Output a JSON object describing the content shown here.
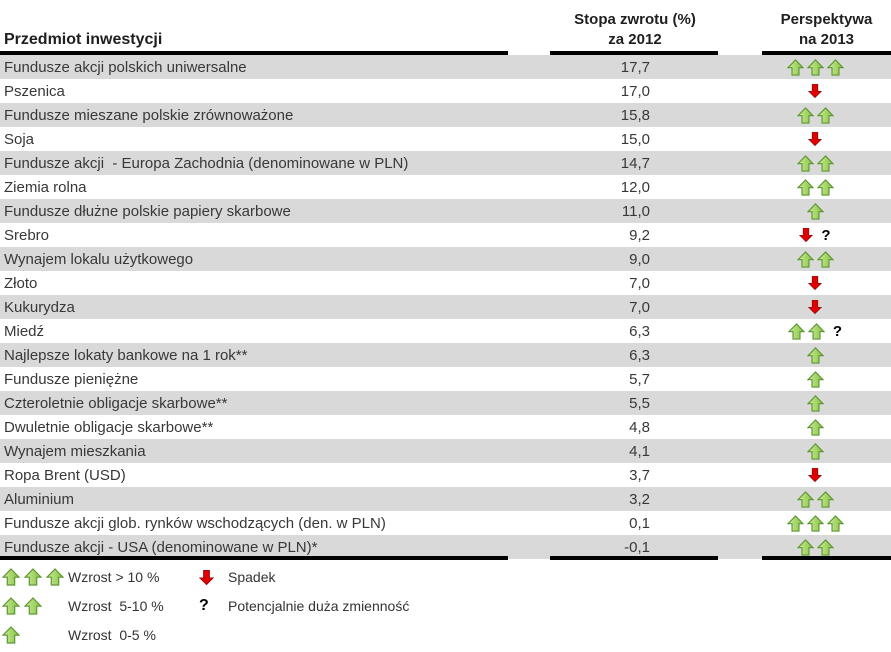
{
  "header": {
    "col1": "Przedmiot inwestycji",
    "col2_line1": "Stopa zwrotu (%)",
    "col2_line2": "za 2012",
    "col3_line1": "Perspektywa",
    "col3_line2": "na 2013"
  },
  "rows": [
    {
      "name": "Fundusze akcji polskich uniwersalne",
      "value": "17,7",
      "up": 3,
      "down": 0,
      "question": false
    },
    {
      "name": "Pszenica",
      "value": "17,0",
      "up": 0,
      "down": 1,
      "question": false
    },
    {
      "name": "Fundusze mieszane polskie zrównoważone",
      "value": "15,8",
      "up": 2,
      "down": 0,
      "question": false
    },
    {
      "name": "Soja",
      "value": "15,0",
      "up": 0,
      "down": 1,
      "question": false
    },
    {
      "name": "Fundusze akcji  - Europa Zachodnia (denominowane w PLN)",
      "value": "14,7",
      "up": 2,
      "down": 0,
      "question": false
    },
    {
      "name": "Ziemia rolna",
      "value": "12,0",
      "up": 2,
      "down": 0,
      "question": false
    },
    {
      "name": "Fundusze dłużne polskie papiery skarbowe",
      "value": "11,0",
      "up": 1,
      "down": 0,
      "question": false
    },
    {
      "name": "Srebro",
      "value": "9,2",
      "up": 0,
      "down": 1,
      "question": true
    },
    {
      "name": "Wynajem lokalu użytkowego",
      "value": "9,0",
      "up": 2,
      "down": 0,
      "question": false
    },
    {
      "name": "Złoto",
      "value": "7,0",
      "up": 0,
      "down": 1,
      "question": false
    },
    {
      "name": "Kukurydza",
      "value": "7,0",
      "up": 0,
      "down": 1,
      "question": false
    },
    {
      "name": "Miedź",
      "value": "6,3",
      "up": 2,
      "down": 0,
      "question": true
    },
    {
      "name": "Najlepsze lokaty bankowe na 1 rok**",
      "value": "6,3",
      "up": 1,
      "down": 0,
      "question": false
    },
    {
      "name": "Fundusze pieniężne",
      "value": "5,7",
      "up": 1,
      "down": 0,
      "question": false
    },
    {
      "name": "Czteroletnie obligacje skarbowe**",
      "value": "5,5",
      "up": 1,
      "down": 0,
      "question": false
    },
    {
      "name": "Dwuletnie obligacje skarbowe**",
      "value": "4,8",
      "up": 1,
      "down": 0,
      "question": false
    },
    {
      "name": "Wynajem mieszkania",
      "value": "4,1",
      "up": 1,
      "down": 0,
      "question": false
    },
    {
      "name": "Ropa Brent (USD)",
      "value": "3,7",
      "up": 0,
      "down": 1,
      "question": false
    },
    {
      "name": "Aluminium",
      "value": "3,2",
      "up": 2,
      "down": 0,
      "question": false
    },
    {
      "name": "Fundusze akcji glob. rynków wschodzących (den. w PLN)",
      "value": "0,1",
      "up": 3,
      "down": 0,
      "question": false
    },
    {
      "name": "Fundusze akcji - USA (denominowane w PLN)*",
      "value": "-0,1",
      "up": 2,
      "down": 0,
      "question": false
    }
  ],
  "legend": {
    "growth_items": [
      {
        "arrows": 3,
        "label": "Wzrost > 10 %"
      },
      {
        "arrows": 2,
        "label": "Wzrost  5-10 %"
      },
      {
        "arrows": 1,
        "label": "Wzrost  0-5 %"
      }
    ],
    "other_items": [
      {
        "symbol": "down-arrow",
        "label": "Spadek"
      },
      {
        "symbol": "question-mark",
        "label": "Potencjalnie duża zmienność"
      }
    ],
    "question_glyph": "?"
  },
  "colors": {
    "row_stripe": "#d9d9d9",
    "up_arrow_fill_light": "#cde9a0",
    "up_arrow_fill": "#84c33c",
    "up_arrow_border": "#5e9732",
    "down_arrow_fill": "#e00000",
    "down_arrow_border": "#9e0b0f",
    "rule": "#000000"
  }
}
